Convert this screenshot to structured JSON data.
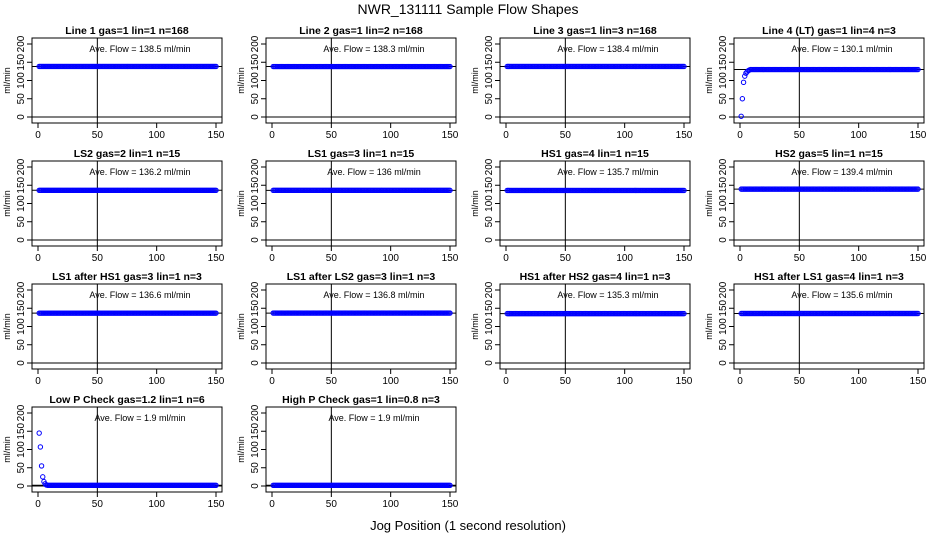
{
  "title": "NWR_131111  Sample Flow Shapes",
  "xlabel": "Jog Position (1 second resolution)",
  "style": {
    "point_color": "#0000ff",
    "line_color": "#000000"
  },
  "chart_data": [
    {
      "type": "scatter",
      "title": "Line 1 gas=1 lin=1 n=168",
      "ylabel": "ml/min",
      "annotation": "Ave. Flow = 138.5  ml/min",
      "flow": 138.5,
      "startup": null,
      "xlim": [
        0,
        150
      ],
      "ylim": [
        0,
        200
      ],
      "xticks": [
        0,
        50,
        100,
        150
      ],
      "yticks": [
        0,
        50,
        100,
        150,
        200
      ],
      "vline": 50
    },
    {
      "type": "scatter",
      "title": "Line 2 gas=1 lin=2 n=168",
      "ylabel": "ml/min",
      "annotation": "Ave. Flow = 138.3  ml/min",
      "flow": 138.3,
      "startup": null,
      "xlim": [
        0,
        150
      ],
      "ylim": [
        0,
        200
      ],
      "xticks": [
        0,
        50,
        100,
        150
      ],
      "yticks": [
        0,
        50,
        100,
        150,
        200
      ],
      "vline": 50
    },
    {
      "type": "scatter",
      "title": "Line 3 gas=1 lin=3 n=168",
      "ylabel": "ml/min",
      "annotation": "Ave. Flow = 138.4  ml/min",
      "flow": 138.4,
      "startup": null,
      "xlim": [
        0,
        150
      ],
      "ylim": [
        0,
        200
      ],
      "xticks": [
        0,
        50,
        100,
        150
      ],
      "yticks": [
        0,
        50,
        100,
        150,
        200
      ],
      "vline": 50
    },
    {
      "type": "scatter",
      "title": "Line 4 (LT) gas=1 lin=4 n=3",
      "ylabel": "ml/min",
      "annotation": "Ave. Flow = 130.1  ml/min",
      "flow": 130.1,
      "startup": [
        [
          1,
          2
        ],
        [
          2,
          50
        ],
        [
          3,
          95
        ],
        [
          4,
          112
        ],
        [
          5,
          120
        ],
        [
          6,
          124
        ],
        [
          7,
          127
        ],
        [
          8,
          129
        ]
      ],
      "xlim": [
        0,
        150
      ],
      "ylim": [
        0,
        200
      ],
      "xticks": [
        0,
        50,
        100,
        150
      ],
      "yticks": [
        0,
        50,
        100,
        150,
        200
      ],
      "vline": 50
    },
    {
      "type": "scatter",
      "title": "LS2 gas=2 lin=1 n=15",
      "ylabel": "ml/min",
      "annotation": "Ave. Flow = 136.2  ml/min",
      "flow": 136.2,
      "startup": null,
      "xlim": [
        0,
        150
      ],
      "ylim": [
        0,
        200
      ],
      "xticks": [
        0,
        50,
        100,
        150
      ],
      "yticks": [
        0,
        50,
        100,
        150,
        200
      ],
      "vline": 50
    },
    {
      "type": "scatter",
      "title": "LS1 gas=3 lin=1 n=15",
      "ylabel": "ml/min",
      "annotation": "Ave. Flow = 136  ml/min",
      "flow": 136,
      "startup": null,
      "xlim": [
        0,
        150
      ],
      "ylim": [
        0,
        200
      ],
      "xticks": [
        0,
        50,
        100,
        150
      ],
      "yticks": [
        0,
        50,
        100,
        150,
        200
      ],
      "vline": 50
    },
    {
      "type": "scatter",
      "title": "HS1 gas=4 lin=1 n=15",
      "ylabel": "ml/min",
      "annotation": "Ave. Flow = 135.7  ml/min",
      "flow": 135.7,
      "startup": null,
      "xlim": [
        0,
        150
      ],
      "ylim": [
        0,
        200
      ],
      "xticks": [
        0,
        50,
        100,
        150
      ],
      "yticks": [
        0,
        50,
        100,
        150,
        200
      ],
      "vline": 50
    },
    {
      "type": "scatter",
      "title": "HS2 gas=5 lin=1 n=15",
      "ylabel": "ml/min",
      "annotation": "Ave. Flow = 139.4  ml/min",
      "flow": 139.4,
      "startup": null,
      "xlim": [
        0,
        150
      ],
      "ylim": [
        0,
        200
      ],
      "xticks": [
        0,
        50,
        100,
        150
      ],
      "yticks": [
        0,
        50,
        100,
        150,
        200
      ],
      "vline": 50
    },
    {
      "type": "scatter",
      "title": "LS1 after HS1 gas=3 lin=1 n=3",
      "ylabel": "ml/min",
      "annotation": "Ave. Flow = 136.6  ml/min",
      "flow": 136.6,
      "startup": null,
      "xlim": [
        0,
        150
      ],
      "ylim": [
        0,
        200
      ],
      "xticks": [
        0,
        50,
        100,
        150
      ],
      "yticks": [
        0,
        50,
        100,
        150,
        200
      ],
      "vline": 50
    },
    {
      "type": "scatter",
      "title": "LS1 after LS2 gas=3 lin=1 n=3",
      "ylabel": "ml/min",
      "annotation": "Ave. Flow = 136.8  ml/min",
      "flow": 136.8,
      "startup": null,
      "xlim": [
        0,
        150
      ],
      "ylim": [
        0,
        200
      ],
      "xticks": [
        0,
        50,
        100,
        150
      ],
      "yticks": [
        0,
        50,
        100,
        150,
        200
      ],
      "vline": 50
    },
    {
      "type": "scatter",
      "title": "HS1 after HS2 gas=4 lin=1 n=3",
      "ylabel": "ml/min",
      "annotation": "Ave. Flow = 135.3  ml/min",
      "flow": 135.3,
      "startup": null,
      "xlim": [
        0,
        150
      ],
      "ylim": [
        0,
        200
      ],
      "xticks": [
        0,
        50,
        100,
        150
      ],
      "yticks": [
        0,
        50,
        100,
        150,
        200
      ],
      "vline": 50
    },
    {
      "type": "scatter",
      "title": "HS1 after LS1 gas=4 lin=1 n=3",
      "ylabel": "ml/min",
      "annotation": "Ave. Flow = 135.6  ml/min",
      "flow": 135.6,
      "startup": null,
      "xlim": [
        0,
        150
      ],
      "ylim": [
        0,
        200
      ],
      "xticks": [
        0,
        50,
        100,
        150
      ],
      "yticks": [
        0,
        50,
        100,
        150,
        200
      ],
      "vline": 50
    },
    {
      "type": "scatter",
      "title": "Low P Check gas=1.2 lin=1 n=6",
      "ylabel": "ml/min",
      "annotation": "Ave. Flow = 1.9  ml/min",
      "flow": 1.9,
      "startup": [
        [
          1,
          145
        ],
        [
          2,
          107
        ],
        [
          3,
          55
        ],
        [
          4,
          25
        ],
        [
          5,
          12
        ],
        [
          6,
          6
        ],
        [
          7,
          3
        ],
        [
          8,
          2
        ]
      ],
      "xlim": [
        0,
        150
      ],
      "ylim": [
        0,
        200
      ],
      "xticks": [
        0,
        50,
        100,
        150
      ],
      "yticks": [
        0,
        50,
        100,
        150,
        200
      ],
      "vline": 50
    },
    {
      "type": "scatter",
      "title": "High P Check gas=1 lin=0.8 n=3",
      "ylabel": "ml/min",
      "annotation": "Ave. Flow = 1.9  ml/min",
      "flow": 1.9,
      "startup": null,
      "xlim": [
        0,
        150
      ],
      "ylim": [
        0,
        200
      ],
      "xticks": [
        0,
        50,
        100,
        150
      ],
      "yticks": [
        0,
        50,
        100,
        150,
        200
      ],
      "vline": 50
    }
  ]
}
